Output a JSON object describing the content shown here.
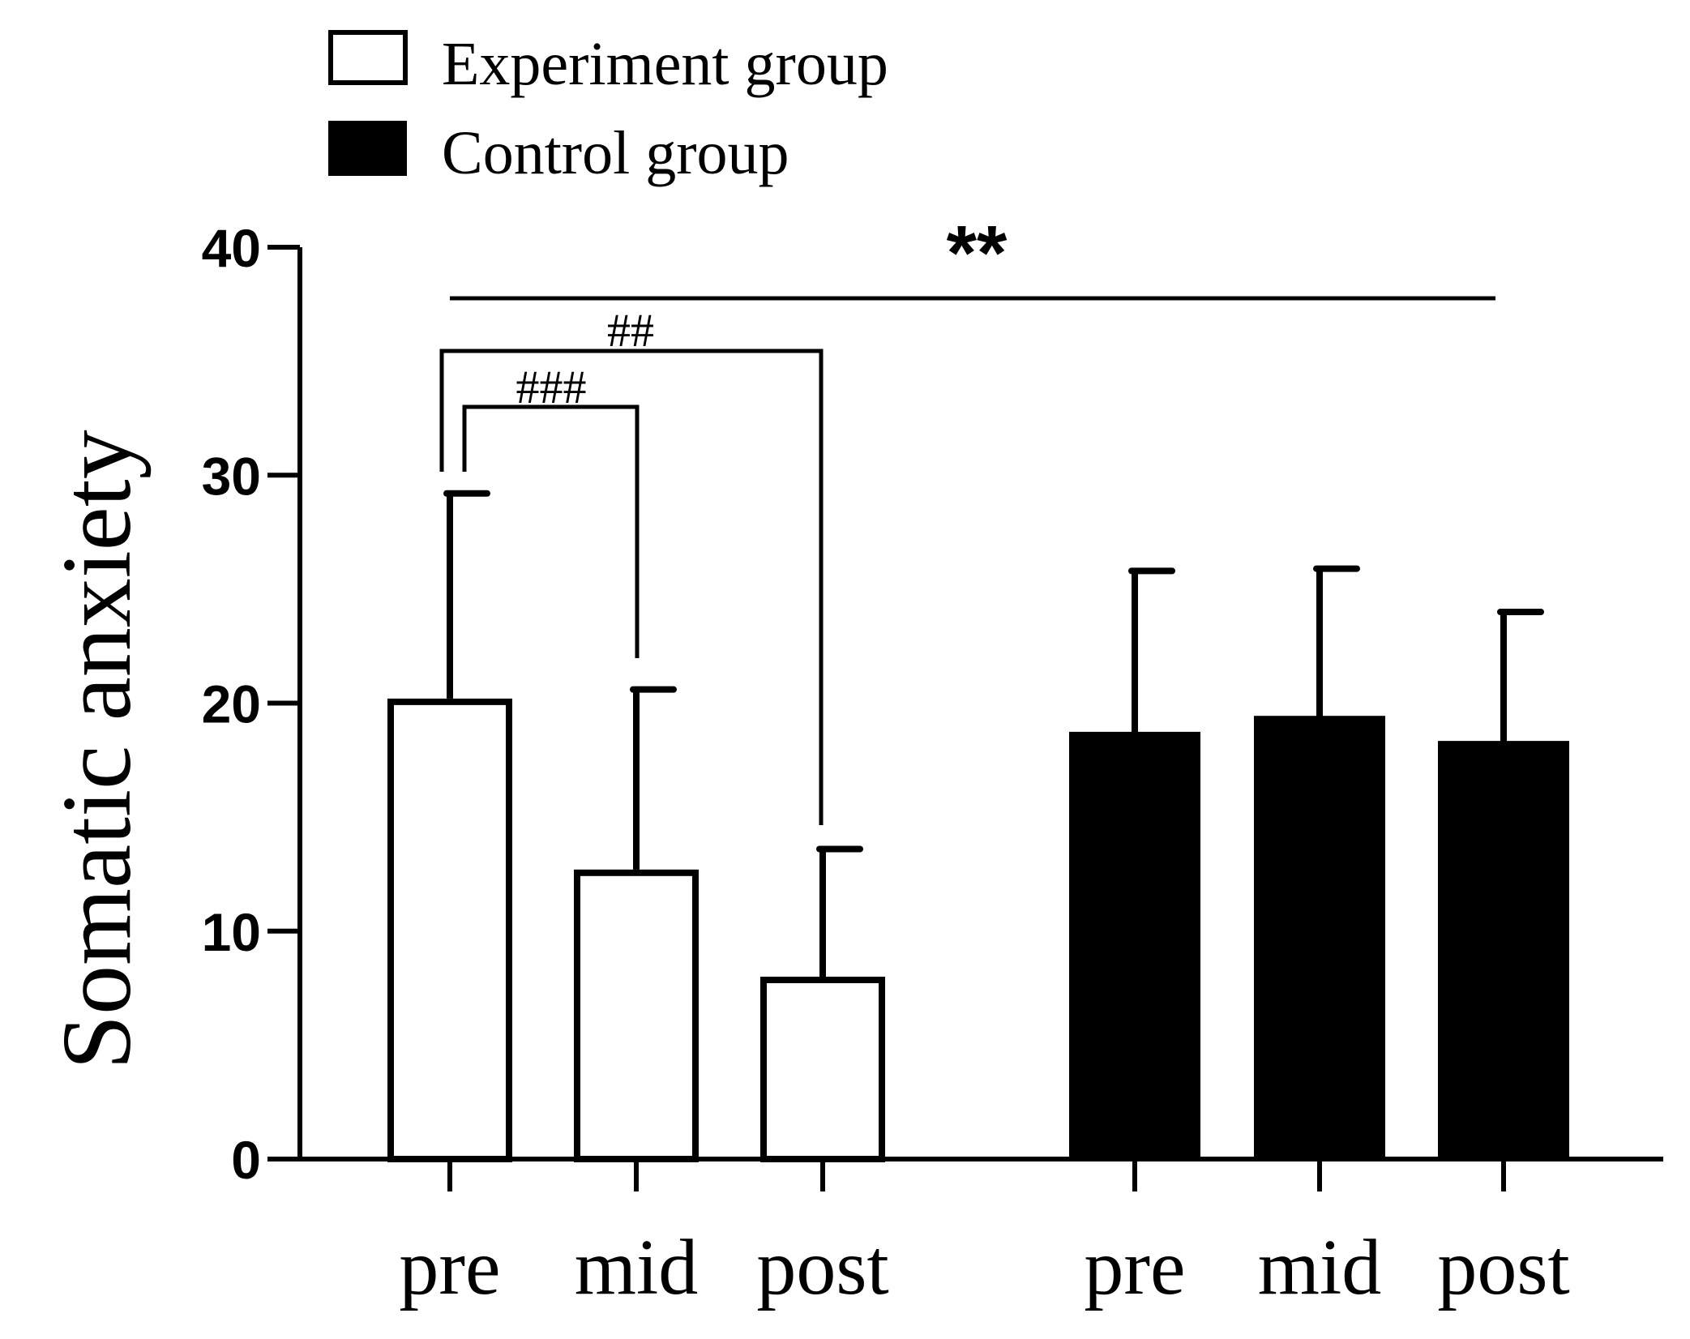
{
  "chart_data": {
    "type": "bar",
    "title": "",
    "xlabel": "",
    "ylabel": "Somatic anxiety",
    "ylim": [
      0,
      40
    ],
    "yticks": [
      0,
      10,
      20,
      30,
      40
    ],
    "categories": [
      "pre",
      "mid",
      "post"
    ],
    "series": [
      {
        "name": "Experiment group",
        "fill": "#ffffff",
        "values": [
          20.2,
          12.7,
          8.0
        ],
        "errors": [
          9.0,
          7.9,
          5.6
        ]
      },
      {
        "name": "Control group",
        "fill": "#000000",
        "values": [
          18.6,
          19.3,
          18.2
        ],
        "errors": [
          7.2,
          6.6,
          5.8
        ]
      }
    ],
    "annotations": {
      "between_groups": "**",
      "pre_vs_post": "##",
      "pre_vs_mid": "###"
    },
    "legend": "top-left",
    "grid": false
  },
  "colors": {
    "ink": "#000000",
    "background": "#ffffff"
  }
}
